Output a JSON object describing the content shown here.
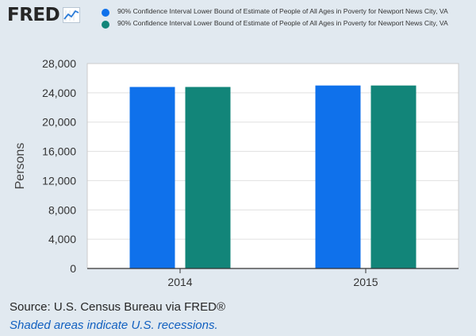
{
  "header": {
    "logo_text": "FRED",
    "logo_icon": "trend-line-chart-icon"
  },
  "chart_data": {
    "type": "bar",
    "categories": [
      "2014",
      "2015"
    ],
    "series": [
      {
        "name": "90% Confidence Interval Lower Bound of Estimate of People of All Ages in Poverty for Newport News City, VA",
        "color": "#0f71eb",
        "values": [
          24800,
          25000
        ]
      },
      {
        "name": "90% Confidence Interval Lower Bound of Estimate of People of All Ages in Poverty for Newport News City, VA",
        "color": "#128579",
        "values": [
          24800,
          25000
        ]
      }
    ],
    "ylabel": "Persons",
    "ylim": [
      0,
      28000
    ],
    "yticks": [
      0,
      4000,
      8000,
      12000,
      16000,
      20000,
      24000,
      28000
    ],
    "ytick_labels": [
      "0",
      "4,000",
      "8,000",
      "12,000",
      "16,000",
      "20,000",
      "24,000",
      "28,000"
    ],
    "grid": true,
    "legend_position": "top"
  },
  "footer": {
    "source": "Source: U.S. Census Bureau via FRED®",
    "note": "Shaded areas indicate U.S. recessions."
  }
}
